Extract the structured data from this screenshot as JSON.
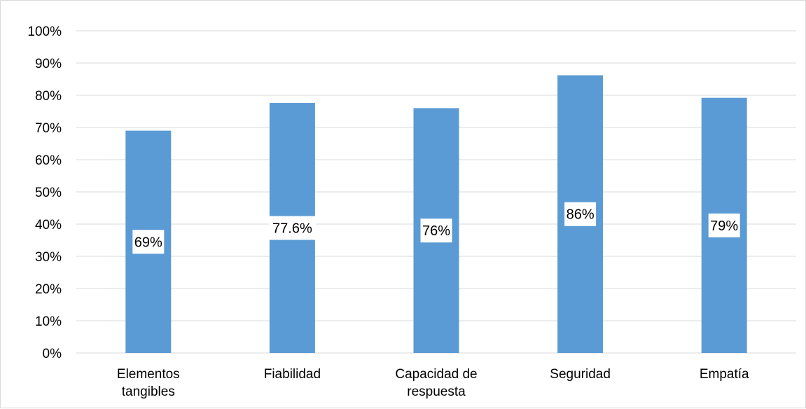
{
  "chart_data": {
    "type": "bar",
    "categories": [
      [
        "Elementos",
        "tangibles"
      ],
      [
        "Fiabilidad"
      ],
      [
        "Capacidad de",
        "respuesta"
      ],
      [
        "Seguridad"
      ],
      [
        "Empatía"
      ]
    ],
    "values": [
      69,
      77.6,
      76,
      86.2,
      79.2
    ],
    "data_labels": [
      "69%",
      "77.6%",
      "76%",
      "86%",
      "79%"
    ],
    "y_ticks": [
      "0%",
      "10%",
      "20%",
      "30%",
      "40%",
      "50%",
      "60%",
      "70%",
      "80%",
      "90%",
      "100%"
    ],
    "ylim": [
      0,
      100
    ],
    "title": "",
    "xlabel": "",
    "ylabel": "",
    "grid": true,
    "legend": "none",
    "bar_color": "#5b9bd5",
    "grid_color": "#d9d9d9"
  }
}
